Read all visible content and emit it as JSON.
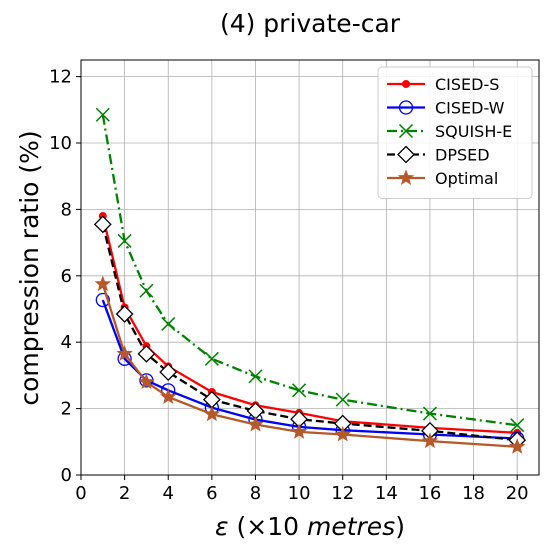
{
  "chart_data": {
    "type": "line",
    "title": "(4) private-car",
    "xlabel": "ε (×10 metres)",
    "xlabel_parts": {
      "symbol": "ε",
      "prefix": "(×10 ",
      "unit": "metres",
      "suffix": ")"
    },
    "ylabel": "compression ratio (%)",
    "xlim": [
      0,
      21
    ],
    "ylim": [
      0,
      12.5
    ],
    "xticks": [
      0,
      2,
      4,
      6,
      8,
      10,
      12,
      14,
      16,
      18,
      20
    ],
    "yticks": [
      0,
      2,
      4,
      6,
      8,
      10,
      12
    ],
    "grid": true,
    "legend_position": "top-right",
    "x": [
      1,
      2,
      3,
      4,
      6,
      8,
      10,
      12,
      16,
      20
    ],
    "series": [
      {
        "name": "CISED-S",
        "color": "#ff0000",
        "dash": "solid",
        "marker": "dot",
        "values": [
          7.8,
          5.05,
          3.88,
          3.27,
          2.5,
          2.1,
          1.87,
          1.62,
          1.42,
          1.27
        ]
      },
      {
        "name": "CISED-W",
        "color": "#0000ff",
        "dash": "solid",
        "marker": "circle",
        "values": [
          5.27,
          3.5,
          2.85,
          2.55,
          2.03,
          1.67,
          1.45,
          1.35,
          1.22,
          1.1
        ]
      },
      {
        "name": "SQUISH-E",
        "color": "#008000",
        "dash": "dashdot",
        "marker": "x",
        "values": [
          10.85,
          7.05,
          5.55,
          4.55,
          3.5,
          2.97,
          2.55,
          2.27,
          1.85,
          1.5
        ]
      },
      {
        "name": "DPSED",
        "color": "#000000",
        "dash": "dashed",
        "marker": "diamond",
        "values": [
          7.55,
          4.85,
          3.65,
          3.1,
          2.27,
          1.93,
          1.68,
          1.55,
          1.33,
          1.05
        ]
      },
      {
        "name": "Optimal",
        "color": "#b5582a",
        "dash": "solid",
        "marker": "star",
        "values": [
          5.75,
          3.65,
          2.8,
          2.35,
          1.83,
          1.52,
          1.3,
          1.22,
          1.02,
          0.85
        ]
      }
    ]
  }
}
